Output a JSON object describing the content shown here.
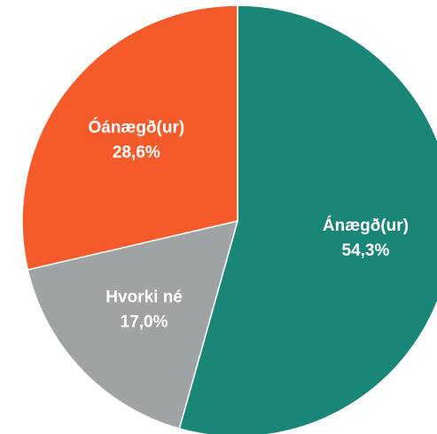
{
  "chart_data": {
    "type": "pie",
    "categories": [
      "Ánægð(ur)",
      "Hvorki né",
      "Óánægð(ur)"
    ],
    "values": [
      54.3,
      17.0,
      28.6
    ],
    "value_labels": [
      "54,3%",
      "17,0%",
      "28,6%"
    ],
    "colors": [
      "#1a8677",
      "#9fa3a3",
      "#f55a2a"
    ]
  }
}
